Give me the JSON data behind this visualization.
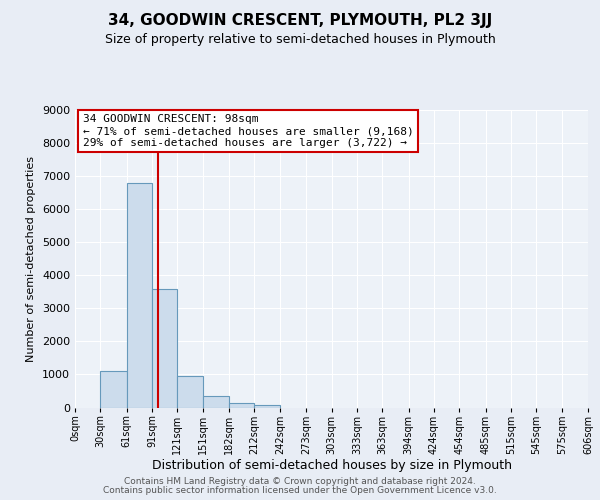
{
  "title": "34, GOODWIN CRESCENT, PLYMOUTH, PL2 3JJ",
  "subtitle": "Size of property relative to semi-detached houses in Plymouth",
  "xlabel": "Distribution of semi-detached houses by size in Plymouth",
  "ylabel": "Number of semi-detached properties",
  "footer_line1": "Contains HM Land Registry data © Crown copyright and database right 2024.",
  "footer_line2": "Contains public sector information licensed under the Open Government Licence v3.0.",
  "annotation_line1": "34 GOODWIN CRESCENT: 98sqm",
  "annotation_line2": "← 71% of semi-detached houses are smaller (9,168)",
  "annotation_line3": "29% of semi-detached houses are larger (3,722) →",
  "property_size": 98,
  "bar_color": "#ccdcec",
  "bar_edge_color": "#6699bb",
  "vline_color": "#cc0000",
  "annotation_box_edge_color": "#cc0000",
  "background_color": "#e8edf5",
  "plot_background_color": "#edf2f8",
  "grid_color": "#ffffff",
  "tick_labels": [
    "0sqm",
    "30sqm",
    "61sqm",
    "91sqm",
    "121sqm",
    "151sqm",
    "182sqm",
    "212sqm",
    "242sqm",
    "273sqm",
    "303sqm",
    "333sqm",
    "363sqm",
    "394sqm",
    "424sqm",
    "454sqm",
    "485sqm",
    "515sqm",
    "545sqm",
    "575sqm",
    "606sqm"
  ],
  "bin_edges": [
    0,
    30,
    61,
    91,
    121,
    151,
    182,
    212,
    242,
    273,
    303,
    333,
    363,
    394,
    424,
    454,
    485,
    515,
    545,
    575,
    606
  ],
  "bar_heights": [
    0,
    1100,
    6800,
    3580,
    960,
    340,
    130,
    80,
    0,
    0,
    0,
    0,
    0,
    0,
    0,
    0,
    0,
    0,
    0,
    0
  ],
  "ylim": [
    0,
    9000
  ],
  "yticks": [
    0,
    1000,
    2000,
    3000,
    4000,
    5000,
    6000,
    7000,
    8000,
    9000
  ]
}
